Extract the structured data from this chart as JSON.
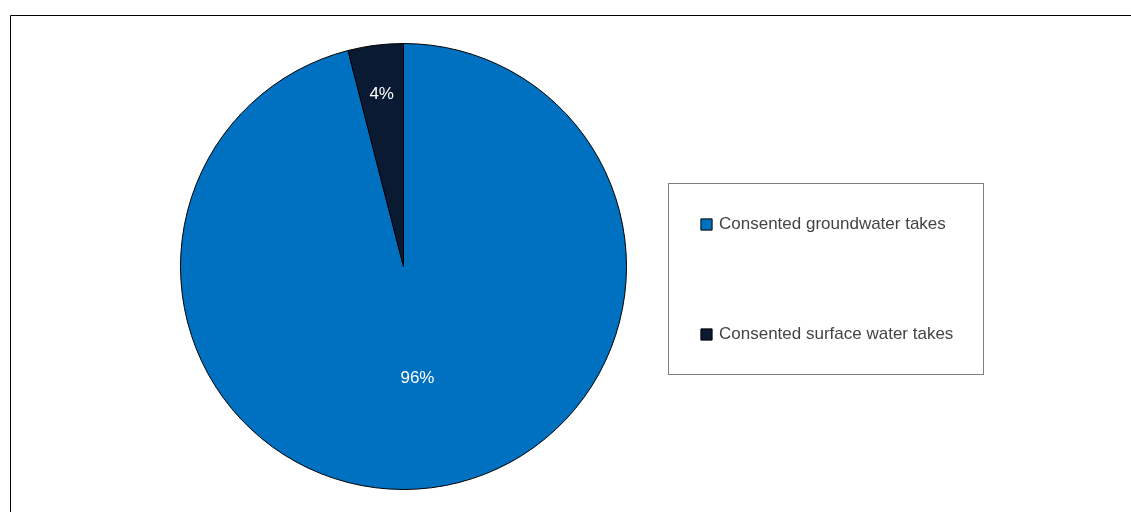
{
  "chart_data": {
    "type": "pie",
    "categories": [
      "Consented groundwater takes",
      "Consented surface water takes"
    ],
    "values": [
      96,
      4
    ],
    "colors": [
      "#0070c0",
      "#0a1a33"
    ],
    "value_labels": [
      "96%",
      "4%"
    ],
    "legend": "right"
  }
}
